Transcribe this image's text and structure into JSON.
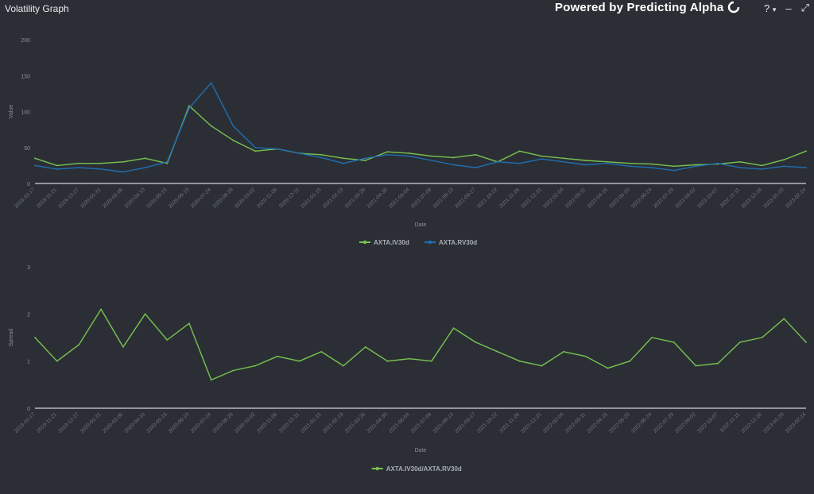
{
  "header": {
    "title": "Volatility Graph",
    "powered_by": "Powered by Predicting Alpha",
    "help_label": "?",
    "help_caret": "▾",
    "minimize_label": "–",
    "expand_label": "⤢"
  },
  "chart_data": [
    {
      "type": "line",
      "ylabel": "Value",
      "xlabel": "Date",
      "ylim": [
        0,
        200
      ],
      "yticks": [
        0,
        50,
        100,
        150,
        200
      ],
      "grid": false,
      "legend": "bottom-center",
      "x": [
        "2019-10-17",
        "2019-11-21",
        "2019-12-27",
        "2020-01-31",
        "2020-03-06",
        "2020-04-10",
        "2020-05-15",
        "2020-06-19",
        "2020-07-24",
        "2020-08-28",
        "2020-10-02",
        "2020-11-06",
        "2020-12-11",
        "2021-01-15",
        "2021-02-19",
        "2021-03-26",
        "2021-04-30",
        "2021-06-04",
        "2021-07-09",
        "2021-08-13",
        "2021-09-17",
        "2021-10-22",
        "2021-11-26",
        "2021-12-31",
        "2022-02-04",
        "2022-03-11",
        "2022-04-15",
        "2022-05-20",
        "2022-06-24",
        "2022-07-29",
        "2022-09-02",
        "2022-10-07",
        "2022-11-11",
        "2022-12-16",
        "2023-01-20",
        "2023-02-24"
      ],
      "series": [
        {
          "name": "AXTA.IV30d",
          "color": "#79c24f",
          "values": [
            35,
            25,
            28,
            28,
            30,
            35,
            28,
            108,
            80,
            60,
            45,
            48,
            42,
            40,
            35,
            32,
            44,
            42,
            38,
            36,
            40,
            30,
            45,
            38,
            35,
            32,
            30,
            28,
            27,
            24,
            26,
            27,
            30,
            25,
            33,
            45
          ]
        },
        {
          "name": "AXTA.RV30d",
          "color": "#1f6fb4",
          "values": [
            25,
            20,
            22,
            20,
            16,
            22,
            30,
            105,
            140,
            80,
            50,
            48,
            42,
            36,
            28,
            35,
            40,
            38,
            32,
            26,
            22,
            30,
            28,
            34,
            30,
            26,
            28,
            24,
            22,
            18,
            24,
            28,
            22,
            20,
            24,
            22
          ]
        }
      ]
    },
    {
      "type": "line",
      "ylabel": "Spread",
      "xlabel": "Date",
      "ylim": [
        0,
        3
      ],
      "yticks": [
        0,
        1,
        2,
        3
      ],
      "grid": false,
      "legend": "bottom-center",
      "x": [
        "2019-10-17",
        "2019-11-21",
        "2019-12-27",
        "2020-01-31",
        "2020-03-06",
        "2020-04-10",
        "2020-05-15",
        "2020-06-19",
        "2020-07-24",
        "2020-08-28",
        "2020-10-02",
        "2020-11-06",
        "2020-12-11",
        "2021-01-15",
        "2021-02-19",
        "2021-03-26",
        "2021-04-30",
        "2021-06-04",
        "2021-07-09",
        "2021-08-13",
        "2021-09-17",
        "2021-10-22",
        "2021-11-26",
        "2021-12-31",
        "2022-02-04",
        "2022-03-11",
        "2022-04-15",
        "2022-05-20",
        "2022-06-24",
        "2022-07-29",
        "2022-09-02",
        "2022-10-07",
        "2022-11-11",
        "2022-12-16",
        "2023-01-20",
        "2023-02-24"
      ],
      "series": [
        {
          "name": "AXTA.IV30d/AXTA.RV30d",
          "color": "#79c24f",
          "values": [
            1.5,
            1.0,
            1.35,
            2.1,
            1.3,
            2.0,
            1.45,
            1.8,
            0.6,
            0.8,
            0.9,
            1.1,
            1.0,
            1.2,
            0.9,
            1.3,
            1.0,
            1.05,
            1.0,
            1.7,
            1.4,
            1.2,
            1.0,
            0.9,
            1.2,
            1.1,
            0.85,
            1.0,
            1.5,
            1.4,
            0.9,
            0.95,
            1.4,
            1.5,
            1.9,
            1.4
          ]
        }
      ]
    }
  ]
}
